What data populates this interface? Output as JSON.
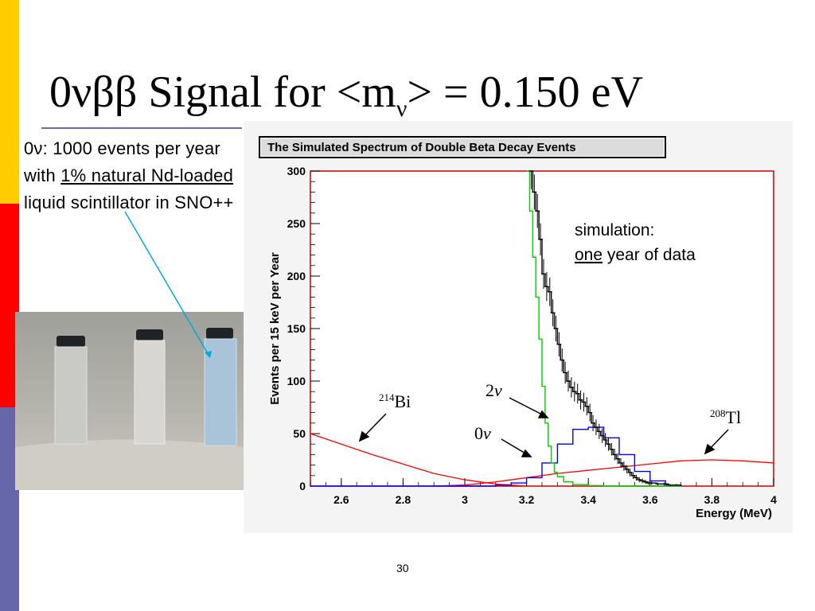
{
  "slide": {
    "title_prefix": "0",
    "title_greek": "νββ",
    "title_mid": " Signal for <m",
    "title_sub": "ν",
    "title_suffix": "> = 0.150 eV",
    "body_prefix": "0ν: 1000 events per year with ",
    "body_underline_1": "1% natural Nd-loaded",
    "body_suffix": " liquid scintillator in SNO++",
    "page_number": "30"
  },
  "photo": {
    "description_name": "three-scintillator-vials",
    "colors": {
      "background": "#b4b2aa",
      "vial_cap": "#1e2326",
      "vial_tint": "#a9c4d8"
    }
  },
  "chart_data": {
    "type": "line",
    "title": "The Simulated Spectrum of Double Beta Decay Events",
    "xlabel": "Energy (MeV)",
    "ylabel": "Events per 15 keV per Year",
    "xlim": [
      2.5,
      4.0
    ],
    "ylim": [
      0,
      300
    ],
    "x_ticks": [
      2.6,
      2.8,
      3.0,
      3.2,
      3.4,
      3.6,
      3.8,
      4.0
    ],
    "x_tick_labels": [
      "2.6",
      "2.8",
      "3",
      "3.2",
      "3.4",
      "3.6",
      "3.8",
      "4"
    ],
    "y_ticks": [
      0,
      50,
      100,
      150,
      200,
      250,
      300
    ],
    "y_tick_labels": [
      "0",
      "50",
      "100",
      "150",
      "200",
      "250",
      "300"
    ],
    "grid": false,
    "annotation_simulation": "simulation:",
    "annotation_one": "one",
    "annotation_year": " year of data",
    "colors": {
      "data": "#000000",
      "two_nu": "#00cc00",
      "zero_nu": "#0000ff",
      "background_bi_tl": "#ff0000",
      "arrow": "#00aadd",
      "frame": "#cc0000"
    },
    "series": [
      {
        "name": "2ν",
        "label_italic": "ν",
        "label_number": "2",
        "x": [
          3.2,
          3.21,
          3.22,
          3.23,
          3.24,
          3.25,
          3.26,
          3.27,
          3.28,
          3.29,
          3.3,
          3.32,
          3.35,
          3.4,
          3.45,
          3.5,
          3.55,
          3.6,
          3.65,
          3.7
        ],
        "values": [
          300,
          262,
          218,
          180,
          140,
          95,
          60,
          38,
          22,
          13,
          9,
          4,
          1.5,
          0.5,
          0,
          0,
          0,
          0,
          0,
          0
        ]
      },
      {
        "name": "0ν",
        "label_italic": "ν",
        "label_number": "0",
        "x": [
          2.5,
          3.0,
          3.1,
          3.15,
          3.2,
          3.25,
          3.3,
          3.35,
          3.4,
          3.45,
          3.5,
          3.55,
          3.6,
          3.65,
          3.7
        ],
        "values": [
          0,
          0,
          1,
          3,
          8,
          22,
          40,
          54,
          56,
          46,
          30,
          14,
          5,
          1,
          0
        ]
      },
      {
        "name": "214Bi",
        "label_sup": "214",
        "label_text": "Bi",
        "x": [
          2.5,
          2.6,
          2.7,
          2.8,
          2.9,
          3.0,
          3.1,
          3.2
        ],
        "values": [
          50,
          40,
          30,
          21,
          12,
          6,
          2,
          0
        ]
      },
      {
        "name": "208Tl",
        "label_sup": "208",
        "label_text": "Tl",
        "x": [
          2.9,
          3.0,
          3.1,
          3.2,
          3.3,
          3.4,
          3.5,
          3.6,
          3.7,
          3.8,
          3.9,
          4.0
        ],
        "values": [
          0,
          1,
          4,
          8,
          12,
          15,
          18,
          21,
          24,
          25,
          24,
          22
        ]
      },
      {
        "name": "data",
        "x": [
          3.21,
          3.22,
          3.23,
          3.24,
          3.25,
          3.26,
          3.27,
          3.28,
          3.29,
          3.3,
          3.31,
          3.32,
          3.33,
          3.34,
          3.35,
          3.36,
          3.37,
          3.38,
          3.39,
          3.4,
          3.41,
          3.42,
          3.43,
          3.44,
          3.45,
          3.46,
          3.47,
          3.48,
          3.49,
          3.5,
          3.51,
          3.52,
          3.53,
          3.54,
          3.55,
          3.56,
          3.57,
          3.58,
          3.59,
          3.6,
          3.62,
          3.64,
          3.66,
          3.68,
          3.7
        ],
        "values": [
          300,
          280,
          262,
          235,
          202,
          190,
          185,
          165,
          150,
          135,
          120,
          108,
          100,
          94,
          90,
          88,
          82,
          80,
          76,
          70,
          60,
          56,
          52,
          48,
          44,
          40,
          35,
          30,
          26,
          22,
          19,
          16,
          13,
          10,
          8,
          6,
          5,
          4,
          3,
          3,
          2,
          2,
          1,
          1,
          0
        ]
      }
    ]
  }
}
